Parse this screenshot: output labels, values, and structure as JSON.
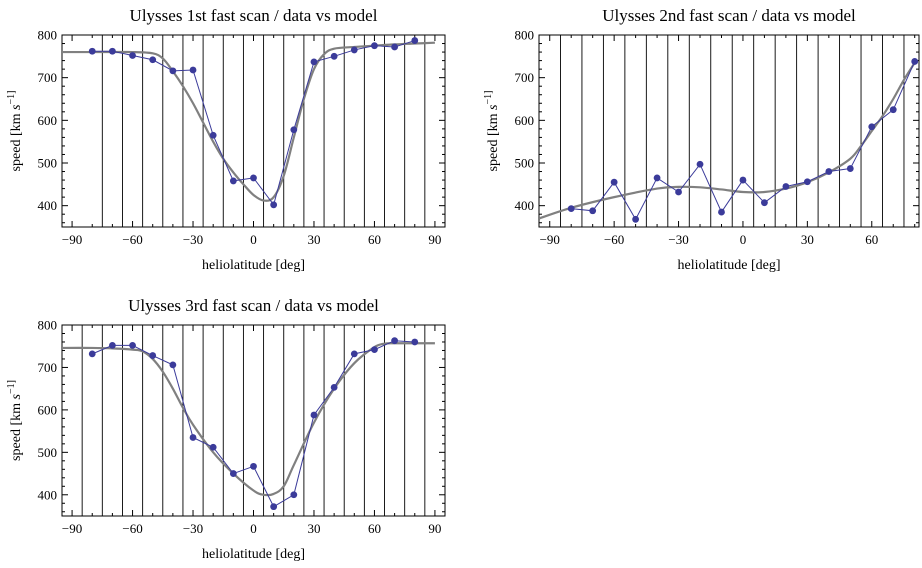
{
  "chart_data": [
    {
      "type": "line",
      "title": "Ulysses 1st fast scan / data vs model",
      "xlabel": "heliolatitude [deg]",
      "ylabel": "speed [km s^-1]",
      "xlim": [
        -95,
        95
      ],
      "ylim": [
        350,
        800
      ],
      "xticks": [
        -90,
        -60,
        -30,
        0,
        30,
        60,
        90
      ],
      "yticks": [
        400,
        500,
        600,
        700,
        800
      ],
      "bin_boundaries": [
        -75,
        -65,
        -55,
        -45,
        -35,
        -25,
        -15,
        -5,
        5,
        15,
        25,
        35,
        45,
        55,
        65,
        75,
        85
      ],
      "series": [
        {
          "role": "data",
          "color": "#3b3b9a",
          "x": [
            -80,
            -70,
            -60,
            -50,
            -40,
            -30,
            -20,
            -10,
            0,
            10,
            20,
            30,
            40,
            50,
            60,
            70,
            80
          ],
          "y": [
            762,
            762,
            752,
            742,
            716,
            718,
            565,
            458,
            465,
            402,
            578,
            737,
            750,
            765,
            775,
            772,
            787
          ]
        },
        {
          "role": "model",
          "color": "#808080",
          "x": [
            -95,
            -80,
            -60,
            -50,
            -45,
            -40,
            -35,
            -30,
            -25,
            -20,
            -15,
            -10,
            -5,
            0,
            5,
            10,
            15,
            20,
            25,
            30,
            35,
            40,
            50,
            60,
            70,
            80,
            90
          ],
          "y": [
            760,
            760,
            760,
            757,
            745,
            715,
            680,
            640,
            595,
            550,
            510,
            478,
            450,
            425,
            412,
            420,
            470,
            560,
            650,
            720,
            755,
            768,
            772,
            775,
            778,
            780,
            782
          ]
        }
      ]
    },
    {
      "type": "line",
      "title": "Ulysses 2nd fast scan / data vs model",
      "xlabel": "heliolatitude [deg]",
      "ylabel": "speed [km s^-1]",
      "xlim": [
        -95,
        82
      ],
      "ylim": [
        350,
        800
      ],
      "xticks": [
        -90,
        -60,
        -30,
        0,
        30,
        60
      ],
      "yticks": [
        400,
        500,
        600,
        700,
        800
      ],
      "bin_boundaries": [
        -85,
        -75,
        -65,
        -55,
        -45,
        -35,
        -25,
        -15,
        -5,
        5,
        15,
        25,
        35,
        45,
        55,
        65,
        75
      ],
      "series": [
        {
          "role": "data",
          "color": "#3b3b9a",
          "x": [
            -80,
            -70,
            -60,
            -50,
            -40,
            -30,
            -20,
            -10,
            0,
            10,
            20,
            30,
            40,
            50,
            60,
            70,
            80
          ],
          "y": [
            393,
            388,
            455,
            368,
            465,
            432,
            497,
            385,
            460,
            407,
            445,
            456,
            480,
            487,
            585,
            625,
            738
          ]
        },
        {
          "role": "model",
          "color": "#808080",
          "x": [
            -95,
            -80,
            -60,
            -40,
            -30,
            -20,
            -10,
            0,
            10,
            20,
            30,
            40,
            50,
            55,
            60,
            65,
            70,
            75,
            80
          ],
          "y": [
            370,
            395,
            420,
            440,
            444,
            443,
            438,
            432,
            432,
            440,
            455,
            478,
            510,
            540,
            575,
            610,
            650,
            695,
            735
          ]
        }
      ]
    },
    {
      "type": "line",
      "title": "Ulysses 3rd fast scan / data vs model",
      "xlabel": "heliolatitude [deg]",
      "ylabel": "speed [km s^-1]",
      "xlim": [
        -95,
        95
      ],
      "ylim": [
        350,
        800
      ],
      "xticks": [
        -90,
        -60,
        -30,
        0,
        30,
        60,
        90
      ],
      "yticks": [
        400,
        500,
        600,
        700,
        800
      ],
      "bin_boundaries": [
        -85,
        -75,
        -65,
        -55,
        -45,
        -35,
        -25,
        -15,
        -5,
        5,
        15,
        25,
        35,
        45,
        55,
        65,
        75,
        85
      ],
      "series": [
        {
          "role": "data",
          "color": "#3b3b9a",
          "x": [
            -80,
            -70,
            -60,
            -50,
            -40,
            -30,
            -20,
            -10,
            0,
            10,
            20,
            30,
            40,
            50,
            60,
            70,
            80
          ],
          "y": [
            732,
            752,
            752,
            728,
            706,
            535,
            512,
            450,
            467,
            372,
            400,
            588,
            653,
            732,
            742,
            763,
            760
          ]
        },
        {
          "role": "model",
          "color": "#808080",
          "x": [
            -95,
            -80,
            -70,
            -60,
            -55,
            -50,
            -45,
            -40,
            -35,
            -30,
            -20,
            -10,
            0,
            5,
            10,
            15,
            20,
            30,
            40,
            50,
            60,
            65,
            70,
            80,
            90
          ],
          "y": [
            746,
            746,
            745,
            742,
            738,
            720,
            690,
            650,
            605,
            565,
            500,
            450,
            410,
            400,
            402,
            420,
            470,
            570,
            650,
            710,
            748,
            756,
            757,
            757,
            757
          ]
        }
      ]
    }
  ]
}
